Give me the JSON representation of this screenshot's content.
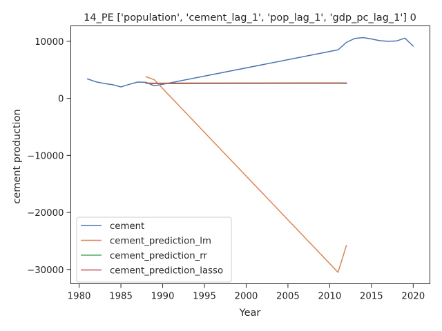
{
  "chart_data": {
    "type": "line",
    "title": "14_PE ['population', 'cement_lag_1', 'pop_lag_1', 'gdp_pc_lag_1'] 0",
    "xlabel": "Year",
    "ylabel": "cement production",
    "xlim": [
      1979.0,
      2022.0
    ],
    "ylim": [
      -32500,
      12700
    ],
    "xticks": [
      1980,
      1985,
      1990,
      1995,
      2000,
      2005,
      2010,
      2015,
      2020
    ],
    "yticks": [
      10000,
      0,
      -10000,
      -20000,
      -30000
    ],
    "ytick_labels": [
      "10000",
      "0",
      "−10000",
      "−20000",
      "−30000"
    ],
    "grid": false,
    "legend": "lower-left",
    "colors": {
      "cement": "#4c72b0",
      "cement_prediction_lm": "#dd8452",
      "cement_prediction_rr": "#55a868",
      "cement_prediction_lasso": "#c44e52",
      "axis": "#262626"
    },
    "series": [
      {
        "name": "cement",
        "x": [
          1981,
          1982,
          1983,
          1984,
          1985,
          1986,
          1987,
          1988,
          1989,
          1990,
          2011,
          2012,
          2013,
          2014,
          2015,
          2016,
          2017,
          2018,
          2019,
          2020
        ],
        "y": [
          3400,
          2900,
          2600,
          2400,
          2000,
          2450,
          2850,
          2800,
          2200,
          2450,
          8500,
          9800,
          10500,
          10650,
          10400,
          10100,
          10000,
          10050,
          10550,
          9150
        ]
      },
      {
        "name": "cement_prediction_lm",
        "x": [
          1988,
          1989,
          2011,
          2012
        ],
        "y": [
          3800,
          3250,
          -30500,
          -25800
        ]
      },
      {
        "name": "cement_prediction_rr",
        "x": [
          1988,
          1989,
          2011,
          2012
        ],
        "y": [
          2600,
          2580,
          2620,
          2590
        ]
      },
      {
        "name": "cement_prediction_lasso",
        "x": [
          1988,
          1989,
          2011,
          2012
        ],
        "y": [
          2680,
          2660,
          2700,
          2680
        ]
      }
    ]
  }
}
